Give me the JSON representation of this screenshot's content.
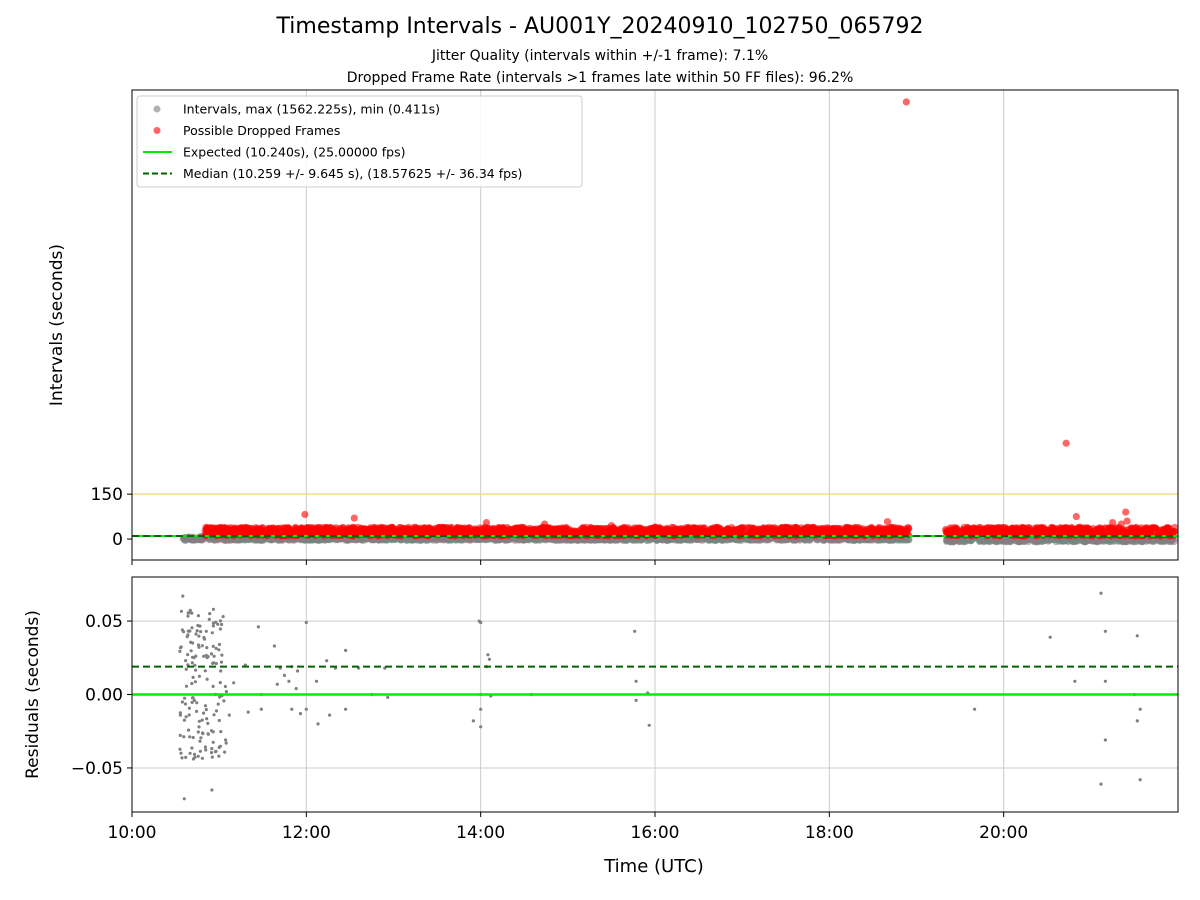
{
  "title": "Timestamp Intervals - AU001Y_20240910_102750_065792",
  "subtitle_1": "Jitter Quality (intervals within +/-1 frame): 7.1%",
  "subtitle_2": "Dropped Frame Rate (intervals >1 frames late within 50 FF files): 96.2%",
  "colors": {
    "intervals": "#808080",
    "dropped": "#ff0000",
    "expected": "#00ee00",
    "median": "#006400",
    "threshold": "#f5d27a",
    "grid": "#cccccc"
  },
  "chart_data": [
    {
      "type": "scatter",
      "panel": "intervals",
      "xlabel": "",
      "ylabel": "Intervals (seconds)",
      "xlim": [
        "10:00",
        "22:00"
      ],
      "ylim": [
        -70,
        1500
      ],
      "yticks": [
        0,
        150
      ],
      "xticks": [
        "10:00",
        "12:00",
        "14:00",
        "16:00",
        "18:00",
        "20:00"
      ],
      "grid": "vertical",
      "legend_position": "top-left",
      "legend": [
        {
          "label": "Intervals, max (1562.225s), min (0.411s)",
          "kind": "gray-dot"
        },
        {
          "label": "Possible Dropped Frames",
          "kind": "red-dot"
        },
        {
          "label": "Expected (10.240s), (25.00000 fps)",
          "kind": "solid-line"
        },
        {
          "label": "Median (10.259 +/- 9.645 s), (18.57625 +/- 36.34 fps)",
          "kind": "dashed-line"
        }
      ],
      "expected_y": 10.24,
      "median_y": 10.259,
      "threshold_y": 150,
      "dense_bands": [
        {
          "start": "10:35",
          "end": "18:55",
          "series": "intervals",
          "y_low": -5,
          "y_high": 10
        },
        {
          "start": "19:20",
          "end": "21:58",
          "series": "intervals",
          "y_low": -10,
          "y_high": 10
        },
        {
          "start": "10:50",
          "end": "18:55",
          "series": "dropped",
          "y_low": 10,
          "y_high": 40
        },
        {
          "start": "19:20",
          "end": "21:58",
          "series": "dropped",
          "y_low": 10,
          "y_high": 40
        }
      ],
      "outliers": [
        {
          "t": "18:53",
          "y": 1460
        },
        {
          "t": "20:43",
          "y": 320
        },
        {
          "t": "11:59",
          "y": 82
        },
        {
          "t": "12:33",
          "y": 70
        },
        {
          "t": "14:04",
          "y": 55
        },
        {
          "t": "14:44",
          "y": 50
        },
        {
          "t": "15:30",
          "y": 45
        },
        {
          "t": "16:00",
          "y": 40
        },
        {
          "t": "18:40",
          "y": 58
        },
        {
          "t": "20:50",
          "y": 75
        },
        {
          "t": "21:15",
          "y": 55
        },
        {
          "t": "21:21",
          "y": 50
        },
        {
          "t": "21:24",
          "y": 90
        },
        {
          "t": "21:25",
          "y": 60
        }
      ]
    },
    {
      "type": "scatter",
      "panel": "residuals",
      "xlabel": "Time (UTC)",
      "ylabel": "Residuals (seconds)",
      "xlim": [
        "10:00",
        "22:00"
      ],
      "ylim": [
        -0.08,
        0.08
      ],
      "yticks": [
        "−0.05",
        "0.00",
        "0.05"
      ],
      "ytick_values": [
        -0.05,
        0.0,
        0.05
      ],
      "xticks": [
        "10:00",
        "12:00",
        "14:00",
        "16:00",
        "18:00",
        "20:00"
      ],
      "grid": "both",
      "expected_y": 0.0,
      "median_y": 0.019,
      "cluster": {
        "start": "10:33",
        "end": "11:05",
        "y_low": -0.045,
        "y_high": 0.06,
        "count": 150
      },
      "points": [
        {
          "t": "10:35",
          "y": 0.067
        },
        {
          "t": "10:36",
          "y": -0.071
        },
        {
          "t": "10:40",
          "y": -0.04
        },
        {
          "t": "10:55",
          "y": -0.065
        },
        {
          "t": "10:56",
          "y": 0.058
        },
        {
          "t": "11:00",
          "y": -0.036
        },
        {
          "t": "11:05",
          "y": 0.002
        },
        {
          "t": "11:07",
          "y": -0.014
        },
        {
          "t": "11:10",
          "y": 0.008
        },
        {
          "t": "11:18",
          "y": 0.02
        },
        {
          "t": "11:20",
          "y": -0.012
        },
        {
          "t": "11:27",
          "y": 0.046
        },
        {
          "t": "11:29",
          "y": 0.0
        },
        {
          "t": "11:29",
          "y": -0.01
        },
        {
          "t": "11:38",
          "y": 0.033
        },
        {
          "t": "11:40",
          "y": 0.007
        },
        {
          "t": "11:42",
          "y": 0.018
        },
        {
          "t": "11:45",
          "y": 0.013
        },
        {
          "t": "11:48",
          "y": 0.009
        },
        {
          "t": "11:50",
          "y": 0.019
        },
        {
          "t": "11:50",
          "y": -0.01
        },
        {
          "t": "11:53",
          "y": 0.004
        },
        {
          "t": "11:54",
          "y": 0.016
        },
        {
          "t": "11:56",
          "y": -0.013
        },
        {
          "t": "12:00",
          "y": 0.049
        },
        {
          "t": "12:00",
          "y": -0.01
        },
        {
          "t": "12:07",
          "y": 0.009
        },
        {
          "t": "12:08",
          "y": -0.02
        },
        {
          "t": "12:14",
          "y": 0.023
        },
        {
          "t": "12:16",
          "y": -0.014
        },
        {
          "t": "12:20",
          "y": 0.018
        },
        {
          "t": "12:27",
          "y": 0.03
        },
        {
          "t": "12:27",
          "y": -0.01
        },
        {
          "t": "12:36",
          "y": 0.018
        },
        {
          "t": "12:45",
          "y": 0.0
        },
        {
          "t": "12:54",
          "y": 0.018
        },
        {
          "t": "12:56",
          "y": -0.002
        },
        {
          "t": "13:55",
          "y": -0.018
        },
        {
          "t": "13:59",
          "y": 0.05
        },
        {
          "t": "14:00",
          "y": 0.049
        },
        {
          "t": "14:00",
          "y": 0.0
        },
        {
          "t": "14:00",
          "y": -0.01
        },
        {
          "t": "14:00",
          "y": -0.022
        },
        {
          "t": "14:04",
          "y": 0.019
        },
        {
          "t": "14:05",
          "y": 0.027
        },
        {
          "t": "14:06",
          "y": 0.024
        },
        {
          "t": "14:07",
          "y": -0.001
        },
        {
          "t": "14:35",
          "y": 0.0
        },
        {
          "t": "15:46",
          "y": 0.043
        },
        {
          "t": "15:47",
          "y": 0.009
        },
        {
          "t": "15:47",
          "y": -0.004
        },
        {
          "t": "15:55",
          "y": 0.001
        },
        {
          "t": "15:56",
          "y": -0.021
        },
        {
          "t": "19:40",
          "y": -0.01
        },
        {
          "t": "20:32",
          "y": 0.039
        },
        {
          "t": "20:49",
          "y": 0.009
        },
        {
          "t": "21:07",
          "y": 0.069
        },
        {
          "t": "21:07",
          "y": -0.061
        },
        {
          "t": "21:10",
          "y": 0.043
        },
        {
          "t": "21:10",
          "y": 0.009
        },
        {
          "t": "21:10",
          "y": -0.031
        },
        {
          "t": "21:30",
          "y": 0.0
        },
        {
          "t": "21:32",
          "y": 0.04
        },
        {
          "t": "21:32",
          "y": -0.018
        },
        {
          "t": "21:34",
          "y": -0.01
        },
        {
          "t": "21:34",
          "y": -0.058
        }
      ]
    }
  ]
}
